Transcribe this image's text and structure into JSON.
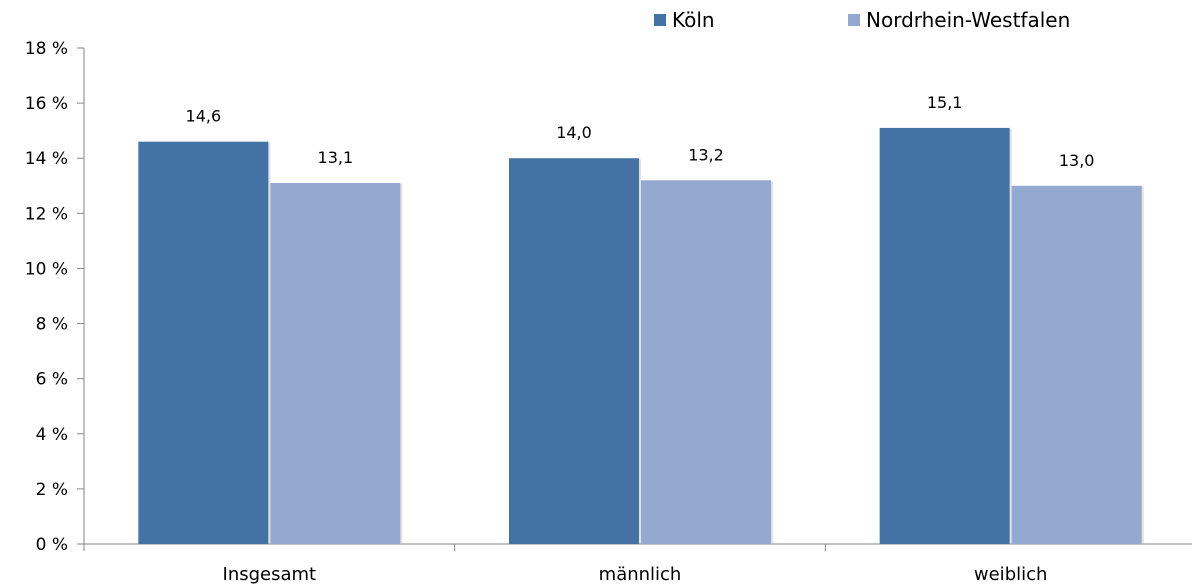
{
  "chart_data": {
    "type": "bar",
    "categories": [
      "Insgesamt",
      "männlich",
      "weiblich"
    ],
    "series": [
      {
        "name": "Köln",
        "values": [
          14.6,
          14.0,
          15.1
        ],
        "labels": [
          "14,6",
          "14,0",
          "15,1"
        ],
        "color": "#4472A4"
      },
      {
        "name": "Nordrhein-Westfalen",
        "values": [
          13.1,
          13.2,
          13.0
        ],
        "labels": [
          "13,1",
          "13,2",
          "13,0"
        ],
        "color": "#94A9D0"
      }
    ],
    "y_ticks": [
      {
        "value": 0,
        "label": "0 %"
      },
      {
        "value": 2,
        "label": "2 %"
      },
      {
        "value": 4,
        "label": "4 %"
      },
      {
        "value": 6,
        "label": "6 %"
      },
      {
        "value": 8,
        "label": "8 %"
      },
      {
        "value": 10,
        "label": "10 %"
      },
      {
        "value": 12,
        "label": "12 %"
      },
      {
        "value": 14,
        "label": "14 %"
      },
      {
        "value": 16,
        "label": "16 %"
      },
      {
        "value": 18,
        "label": "18 %"
      }
    ],
    "ylim": [
      0,
      18
    ],
    "grid": false,
    "legend_position": "top-right",
    "axis_color": "#868686"
  }
}
